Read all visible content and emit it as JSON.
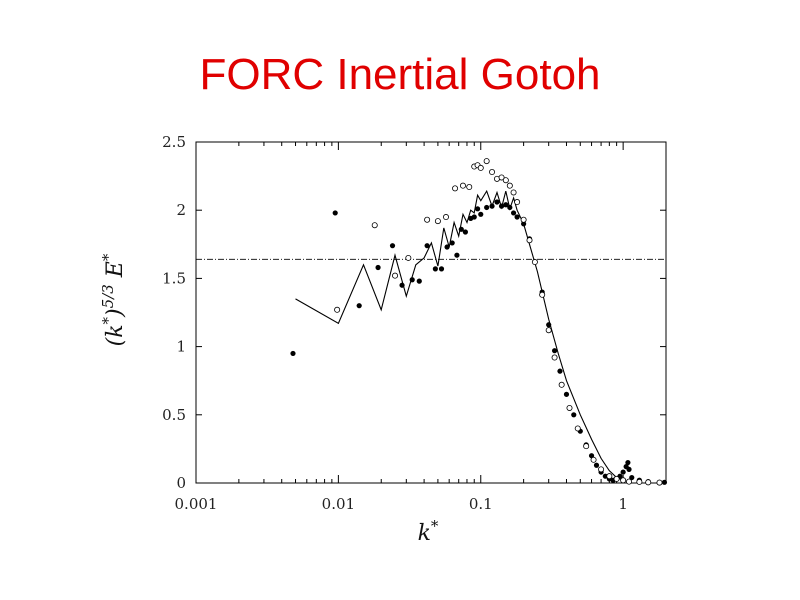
{
  "slide": {
    "title": "FORC Inertial Gotoh"
  },
  "chart_data": {
    "type": "scatter",
    "title": "",
    "xlabel": "k*",
    "ylabel": "(k*)^{5/3} E*",
    "xscale": "log",
    "xlim": [
      0.001,
      2.0
    ],
    "ylim": [
      0,
      2.5
    ],
    "xticks": [
      {
        "value": 0.001,
        "label": "0.001"
      },
      {
        "value": 0.01,
        "label": "0.01"
      },
      {
        "value": 0.1,
        "label": "0.1"
      },
      {
        "value": 1,
        "label": "1"
      }
    ],
    "yticks": [
      {
        "value": 0,
        "label": "0"
      },
      {
        "value": 0.5,
        "label": "0.5"
      },
      {
        "value": 1,
        "label": "1"
      },
      {
        "value": 1.5,
        "label": "1.5"
      },
      {
        "value": 2,
        "label": "2"
      },
      {
        "value": 2.5,
        "label": "2.5"
      }
    ],
    "grid": false,
    "legend": "none",
    "reference_line": {
      "y": 1.64,
      "style": "dash-dot"
    },
    "series": [
      {
        "style": "solid-line",
        "color": "#000000",
        "x": [
          0.005,
          0.01,
          0.015,
          0.02,
          0.025,
          0.03,
          0.035,
          0.04,
          0.045,
          0.05,
          0.055,
          0.06,
          0.065,
          0.07,
          0.075,
          0.08,
          0.085,
          0.09,
          0.095,
          0.1,
          0.11,
          0.12,
          0.13,
          0.14,
          0.15,
          0.16,
          0.17,
          0.18,
          0.2,
          0.22,
          0.25,
          0.3,
          0.35,
          0.4,
          0.5,
          0.6,
          0.7,
          0.8,
          0.9,
          1.0
        ],
        "y": [
          1.35,
          1.17,
          1.6,
          1.27,
          1.67,
          1.37,
          1.6,
          1.65,
          1.76,
          1.59,
          1.87,
          1.73,
          1.91,
          1.81,
          1.97,
          1.91,
          2.0,
          1.98,
          2.11,
          2.07,
          2.14,
          2.03,
          2.13,
          2.02,
          2.14,
          2.01,
          2.09,
          2.0,
          1.9,
          1.75,
          1.55,
          1.2,
          0.95,
          0.75,
          0.5,
          0.32,
          0.18,
          0.09,
          0.04,
          0.02
        ]
      },
      {
        "style": "filled-dots",
        "color": "#000000",
        "x": [
          0.0048,
          0.0095,
          0.014,
          0.019,
          0.024,
          0.028,
          0.033,
          0.037,
          0.042,
          0.048,
          0.053,
          0.058,
          0.063,
          0.068,
          0.073,
          0.078,
          0.085,
          0.09,
          0.095,
          0.1,
          0.11,
          0.12,
          0.13,
          0.14,
          0.15,
          0.16,
          0.17,
          0.18,
          0.2,
          0.22,
          0.24,
          0.27,
          0.3,
          0.33,
          0.36,
          0.4,
          0.45,
          0.5,
          0.55,
          0.6,
          0.65,
          0.7,
          0.75,
          0.8,
          0.85,
          0.9,
          0.95,
          1.0,
          1.05,
          1.08,
          1.1,
          1.15,
          1.3,
          1.5,
          1.8,
          1.95
        ],
        "y": [
          0.95,
          1.98,
          1.3,
          1.58,
          1.74,
          1.45,
          1.49,
          1.48,
          1.74,
          1.57,
          1.57,
          1.73,
          1.76,
          1.67,
          1.86,
          1.84,
          1.94,
          1.95,
          2.01,
          1.97,
          2.02,
          2.03,
          2.06,
          2.03,
          2.04,
          2.02,
          1.98,
          1.95,
          1.9,
          1.79,
          1.62,
          1.4,
          1.16,
          0.97,
          0.82,
          0.65,
          0.5,
          0.38,
          0.28,
          0.2,
          0.13,
          0.08,
          0.05,
          0.03,
          0.02,
          0.03,
          0.05,
          0.08,
          0.12,
          0.15,
          0.1,
          0.04,
          0.02,
          0.01,
          0.005,
          0.005
        ]
      },
      {
        "style": "open-circles",
        "color": "#000000",
        "x": [
          0.0098,
          0.018,
          0.025,
          0.031,
          0.042,
          0.05,
          0.057,
          0.066,
          0.075,
          0.083,
          0.09,
          0.095,
          0.1,
          0.11,
          0.12,
          0.13,
          0.14,
          0.15,
          0.16,
          0.17,
          0.18,
          0.2,
          0.22,
          0.24,
          0.27,
          0.3,
          0.33,
          0.37,
          0.42,
          0.48,
          0.55,
          0.62,
          0.7,
          0.8,
          0.9,
          1.0,
          1.1,
          1.3,
          1.5,
          1.8
        ],
        "y": [
          1.27,
          1.89,
          1.52,
          1.65,
          1.93,
          1.92,
          1.95,
          2.16,
          2.18,
          2.17,
          2.32,
          2.33,
          2.31,
          2.36,
          2.28,
          2.23,
          2.24,
          2.22,
          2.18,
          2.13,
          2.06,
          1.93,
          1.78,
          1.62,
          1.38,
          1.12,
          0.92,
          0.72,
          0.55,
          0.4,
          0.27,
          0.17,
          0.1,
          0.05,
          0.03,
          0.02,
          0.01,
          0.008,
          0.005,
          0.003
        ]
      }
    ]
  }
}
